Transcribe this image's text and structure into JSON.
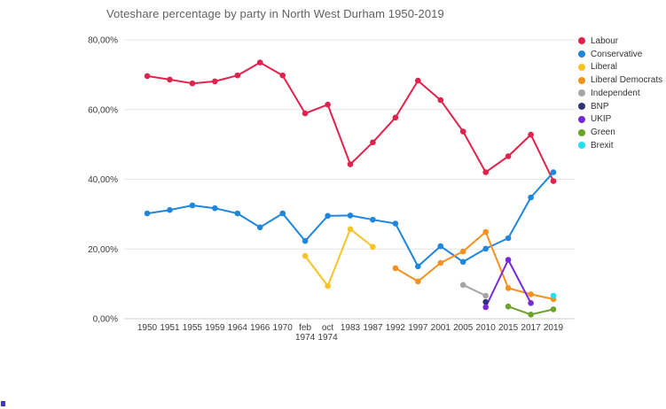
{
  "chart_data": {
    "type": "line",
    "title": "Voteshare percentage by party in North West Durham 1950-2019",
    "xlabel": "",
    "ylabel": "",
    "ylim": [
      0,
      80
    ],
    "grid": true,
    "legend_position": "right",
    "y_ticks": [
      {
        "label": "0,00%",
        "value": 0
      },
      {
        "label": "20,00%",
        "value": 20
      },
      {
        "label": "40,00%",
        "value": 40
      },
      {
        "label": "60,00%",
        "value": 60
      },
      {
        "label": "80,00%",
        "value": 80
      }
    ],
    "categories": [
      "1950",
      "1951",
      "1955",
      "1959",
      "1964",
      "1966",
      "1970",
      "feb 1974",
      "oct 1974",
      "1983",
      "1987",
      "1992",
      "1997",
      "2001",
      "2005",
      "2010",
      "2015",
      "2017",
      "2019"
    ],
    "series": [
      {
        "name": "Labour",
        "color": "#e0224c",
        "values": [
          69.6,
          68.6,
          67.5,
          68.1,
          69.8,
          73.5,
          69.8,
          58.9,
          61.4,
          44.3,
          50.6,
          57.7,
          68.3,
          62.7,
          53.7,
          42.0,
          46.6,
          52.8,
          39.5
        ]
      },
      {
        "name": "Conservative",
        "color": "#1e86dd",
        "values": [
          30.2,
          31.2,
          32.5,
          31.7,
          30.2,
          26.2,
          30.2,
          22.3,
          29.5,
          29.6,
          28.4,
          27.3,
          15.0,
          20.8,
          16.3,
          20.1,
          23.1,
          34.8,
          42.0
        ]
      },
      {
        "name": "Liberal",
        "color": "#f7c325",
        "values": [
          null,
          null,
          null,
          null,
          null,
          null,
          null,
          18.0,
          9.4,
          25.7,
          20.6,
          null,
          null,
          null,
          null,
          null,
          null,
          null,
          null
        ]
      },
      {
        "name": "Liberal Democrats",
        "color": "#f5911e",
        "values": [
          null,
          null,
          null,
          null,
          null,
          null,
          null,
          null,
          null,
          null,
          null,
          14.5,
          10.7,
          16.0,
          19.3,
          24.9,
          8.8,
          7.0,
          5.6
        ]
      },
      {
        "name": "Independent",
        "color": "#a5a5a5",
        "values": [
          null,
          null,
          null,
          null,
          null,
          null,
          null,
          null,
          null,
          null,
          null,
          null,
          null,
          null,
          9.7,
          6.6,
          null,
          null,
          null
        ]
      },
      {
        "name": "BNP",
        "color": "#34347c",
        "values": [
          null,
          null,
          null,
          null,
          null,
          null,
          null,
          null,
          null,
          null,
          null,
          null,
          null,
          null,
          null,
          4.8,
          null,
          null,
          null
        ]
      },
      {
        "name": "UKIP",
        "color": "#7729d8",
        "values": [
          null,
          null,
          null,
          null,
          null,
          null,
          null,
          null,
          null,
          null,
          null,
          null,
          null,
          null,
          null,
          3.3,
          16.9,
          4.5,
          null
        ]
      },
      {
        "name": "Green",
        "color": "#6ba32c",
        "values": [
          null,
          null,
          null,
          null,
          null,
          null,
          null,
          null,
          null,
          null,
          null,
          null,
          null,
          null,
          null,
          null,
          3.5,
          1.2,
          2.7
        ]
      },
      {
        "name": "Brexit",
        "color": "#20e0f2",
        "values": [
          null,
          null,
          null,
          null,
          null,
          null,
          null,
          null,
          null,
          null,
          null,
          null,
          null,
          null,
          null,
          null,
          null,
          null,
          6.6
        ]
      }
    ],
    "style": {
      "gridline_color": "#e6e6e6",
      "baseline_color": "#cccccc",
      "axis_text_color": "#3c3c3c",
      "title_color": "#616161"
    }
  }
}
